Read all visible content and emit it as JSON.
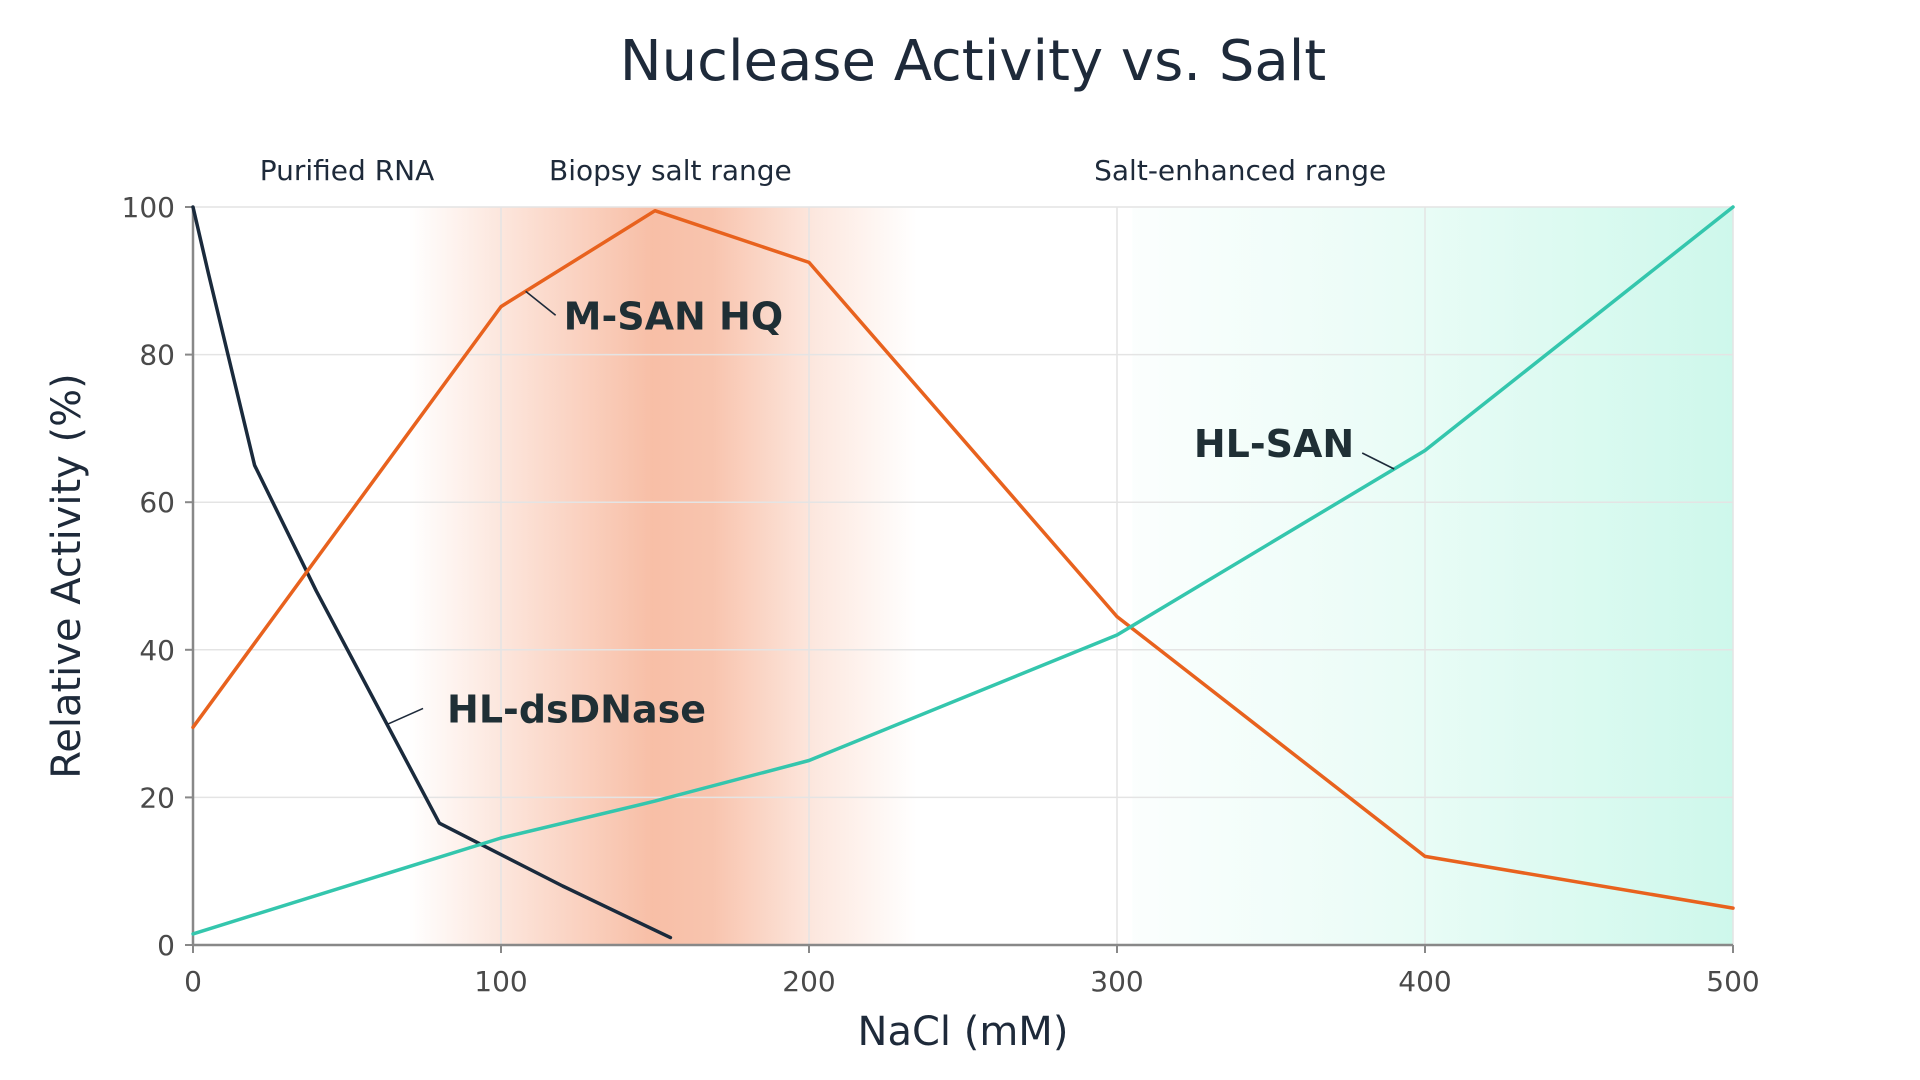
{
  "chart_data": {
    "type": "line",
    "title": "Nuclease Activity vs. Salt",
    "xlabel": "NaCl (mM)",
    "ylabel": "Relative Activity (%)",
    "xlim": [
      0,
      500
    ],
    "ylim": [
      0,
      100
    ],
    "xticks": [
      0,
      100,
      200,
      300,
      400,
      500
    ],
    "yticks": [
      0,
      20,
      40,
      60,
      80,
      100
    ],
    "grid": true,
    "series": [
      {
        "name": "HL-dsDNase",
        "color": "#1a2a3c",
        "x": [
          0,
          5,
          20,
          40,
          80,
          120,
          155
        ],
        "y": [
          100,
          91,
          65,
          48,
          16.5,
          8,
          1
        ]
      },
      {
        "name": "M-SAN HQ",
        "color": "#e8621e",
        "x": [
          0,
          100,
          150,
          200,
          300,
          400,
          500
        ],
        "y": [
          29.5,
          86.5,
          99.5,
          92.5,
          44.5,
          12,
          5
        ]
      },
      {
        "name": "HL-SAN",
        "color": "#34c6ad",
        "x": [
          0,
          100,
          150,
          200,
          300,
          400,
          500
        ],
        "y": [
          1.5,
          14.5,
          19.5,
          25,
          42,
          67,
          100
        ]
      }
    ],
    "regions": [
      {
        "label": "Purified RNA",
        "x_start": 0,
        "x_end": 75,
        "color": ""
      },
      {
        "label": "Biopsy salt range",
        "x_start": 70,
        "x_end": 235,
        "peak": 150,
        "color": "#f28a5e"
      },
      {
        "label": "Salt-enhanced range",
        "x_start": 305,
        "x_end": 500,
        "color": "#3be3b0"
      }
    ],
    "annotations": [
      {
        "text": "M-SAN HQ",
        "series": "M-SAN HQ",
        "at_x": 108
      },
      {
        "text": "HL-SAN",
        "series": "HL-SAN",
        "at_x": 390
      },
      {
        "text": "HL-dsDNase",
        "series": "HL-dsDNase",
        "at_x": 63
      }
    ]
  }
}
